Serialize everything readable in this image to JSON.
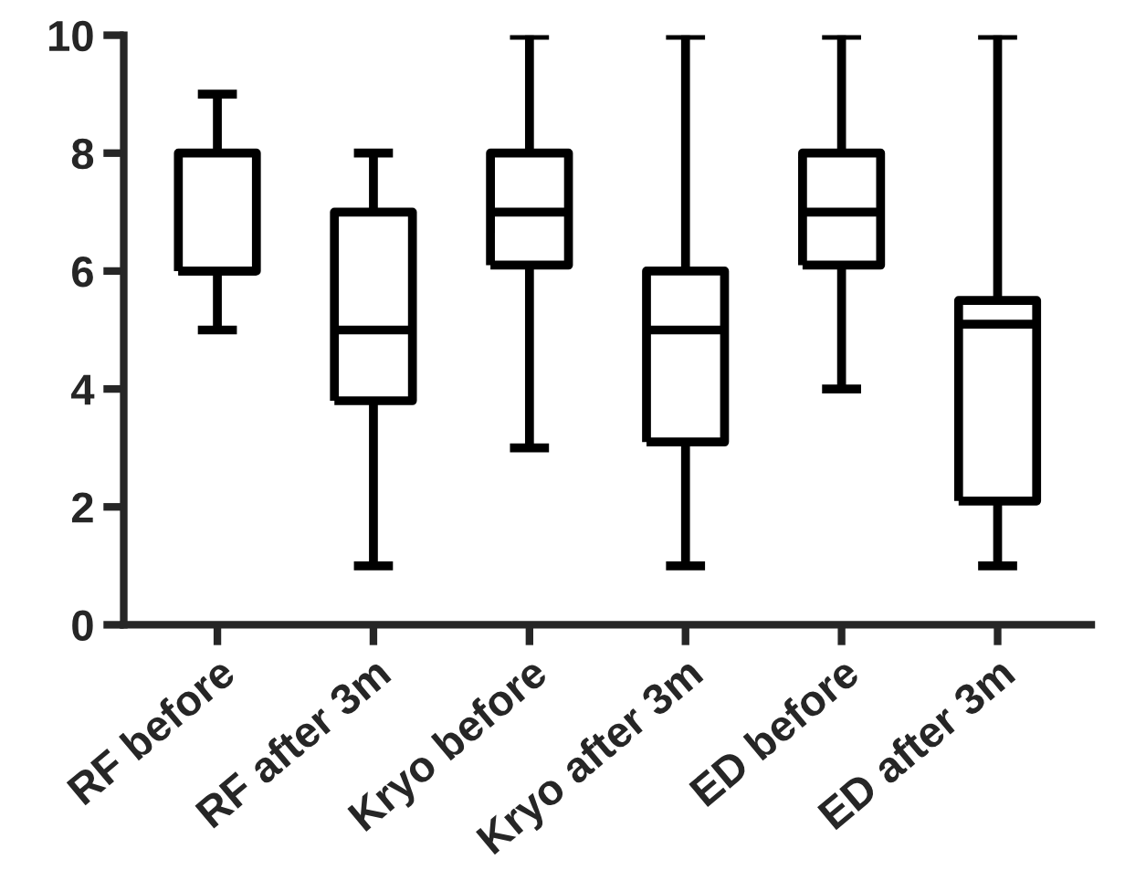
{
  "chart_data": {
    "type": "box",
    "categories": [
      "RF before",
      "RF after 3m",
      "Kryo before",
      "Kryo after 3m",
      "ED before",
      "ED after 3m"
    ],
    "boxes": [
      {
        "low": 5,
        "q1": 6,
        "median": 6,
        "q3": 8,
        "high": 9
      },
      {
        "low": 1,
        "q1": 3.8,
        "median": 5,
        "q3": 7,
        "high": 8
      },
      {
        "low": 3,
        "q1": 6.1,
        "median": 7,
        "q3": 8,
        "high": 10
      },
      {
        "low": 1,
        "q1": 3.1,
        "median": 5,
        "q3": 6,
        "high": 10
      },
      {
        "low": 4,
        "q1": 6.1,
        "median": 7,
        "q3": 8,
        "high": 10
      },
      {
        "low": 1,
        "q1": 2.1,
        "median": 5.1,
        "q3": 5.5,
        "high": 10
      }
    ],
    "color": "#000000",
    "ylim": [
      0,
      10
    ],
    "yticks": [
      0,
      2,
      4,
      6,
      8,
      10
    ],
    "grid": false,
    "legend": false
  }
}
